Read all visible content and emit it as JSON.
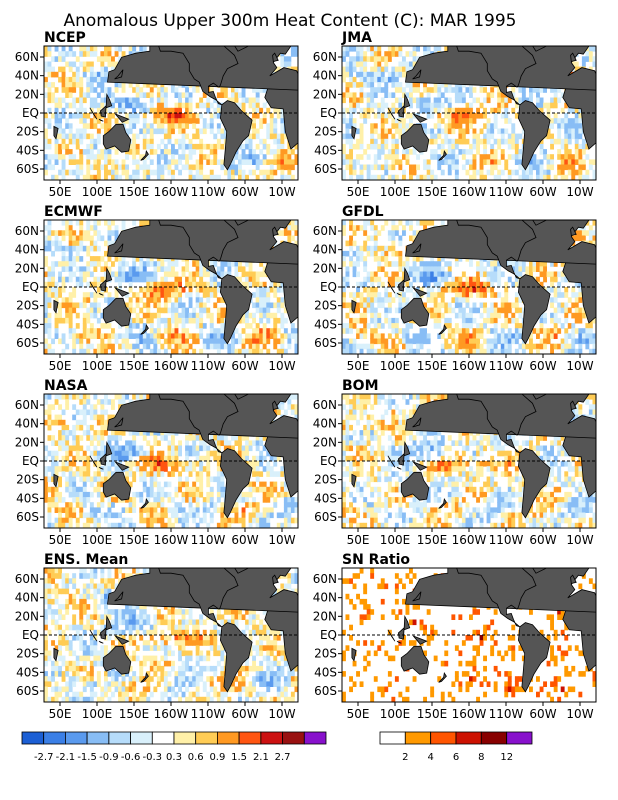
{
  "figure": {
    "title": "Anomalous Upper 300m Heat Content (C): MAR 1995"
  },
  "chart_data": {
    "type": "heatmap",
    "title": "Anomalous Upper 300m Heat Content (C): MAR 1995",
    "lon_ticks": [
      "50E",
      "100E",
      "150E",
      "160W",
      "110W",
      "60W",
      "10W"
    ],
    "lat_ticks": [
      "60N",
      "40N",
      "20N",
      "EQ",
      "20S",
      "40S",
      "60S"
    ],
    "lon_range": [
      30,
      390
    ],
    "lat_range": [
      -65,
      65
    ],
    "reference_line": "EQ",
    "panels": [
      {
        "name": "NCEP",
        "key": "ncep",
        "variable": "anomaly"
      },
      {
        "name": "JMA",
        "key": "jma",
        "variable": "anomaly"
      },
      {
        "name": "ECMWF",
        "key": "ecmwf",
        "variable": "anomaly"
      },
      {
        "name": "GFDL",
        "key": "gfdl",
        "variable": "anomaly"
      },
      {
        "name": "NASA",
        "key": "nasa",
        "variable": "anomaly"
      },
      {
        "name": "BOM",
        "key": "bom",
        "variable": "anomaly"
      },
      {
        "name": "ENS. Mean",
        "key": "ens",
        "variable": "anomaly"
      },
      {
        "name": "SN Ratio",
        "key": "sn",
        "variable": "ratio"
      }
    ],
    "colorbars": [
      {
        "name": "anomaly",
        "labels": [
          "-2.7",
          "-2.1",
          "-1.5",
          "-0.9",
          "-0.6",
          "-0.3",
          "0.3",
          "0.6",
          "0.9",
          "1.5",
          "2.1",
          "2.7"
        ],
        "colors": [
          "#1c5fd4",
          "#3b7fe6",
          "#5a9aee",
          "#88bdf5",
          "#b6dcfa",
          "#d9f0fb",
          "#ffffff",
          "#fff0a8",
          "#ffcc55",
          "#ff9922",
          "#ff5511",
          "#cc1111",
          "#991111",
          "#8811cc"
        ]
      },
      {
        "name": "ratio",
        "labels": [
          "2",
          "4",
          "6",
          "8",
          "12"
        ],
        "colors": [
          "#ffffff",
          "#ff9900",
          "#ff5500",
          "#cc1100",
          "#880000",
          "#8811cc"
        ]
      }
    ],
    "land_color": "#555555"
  }
}
